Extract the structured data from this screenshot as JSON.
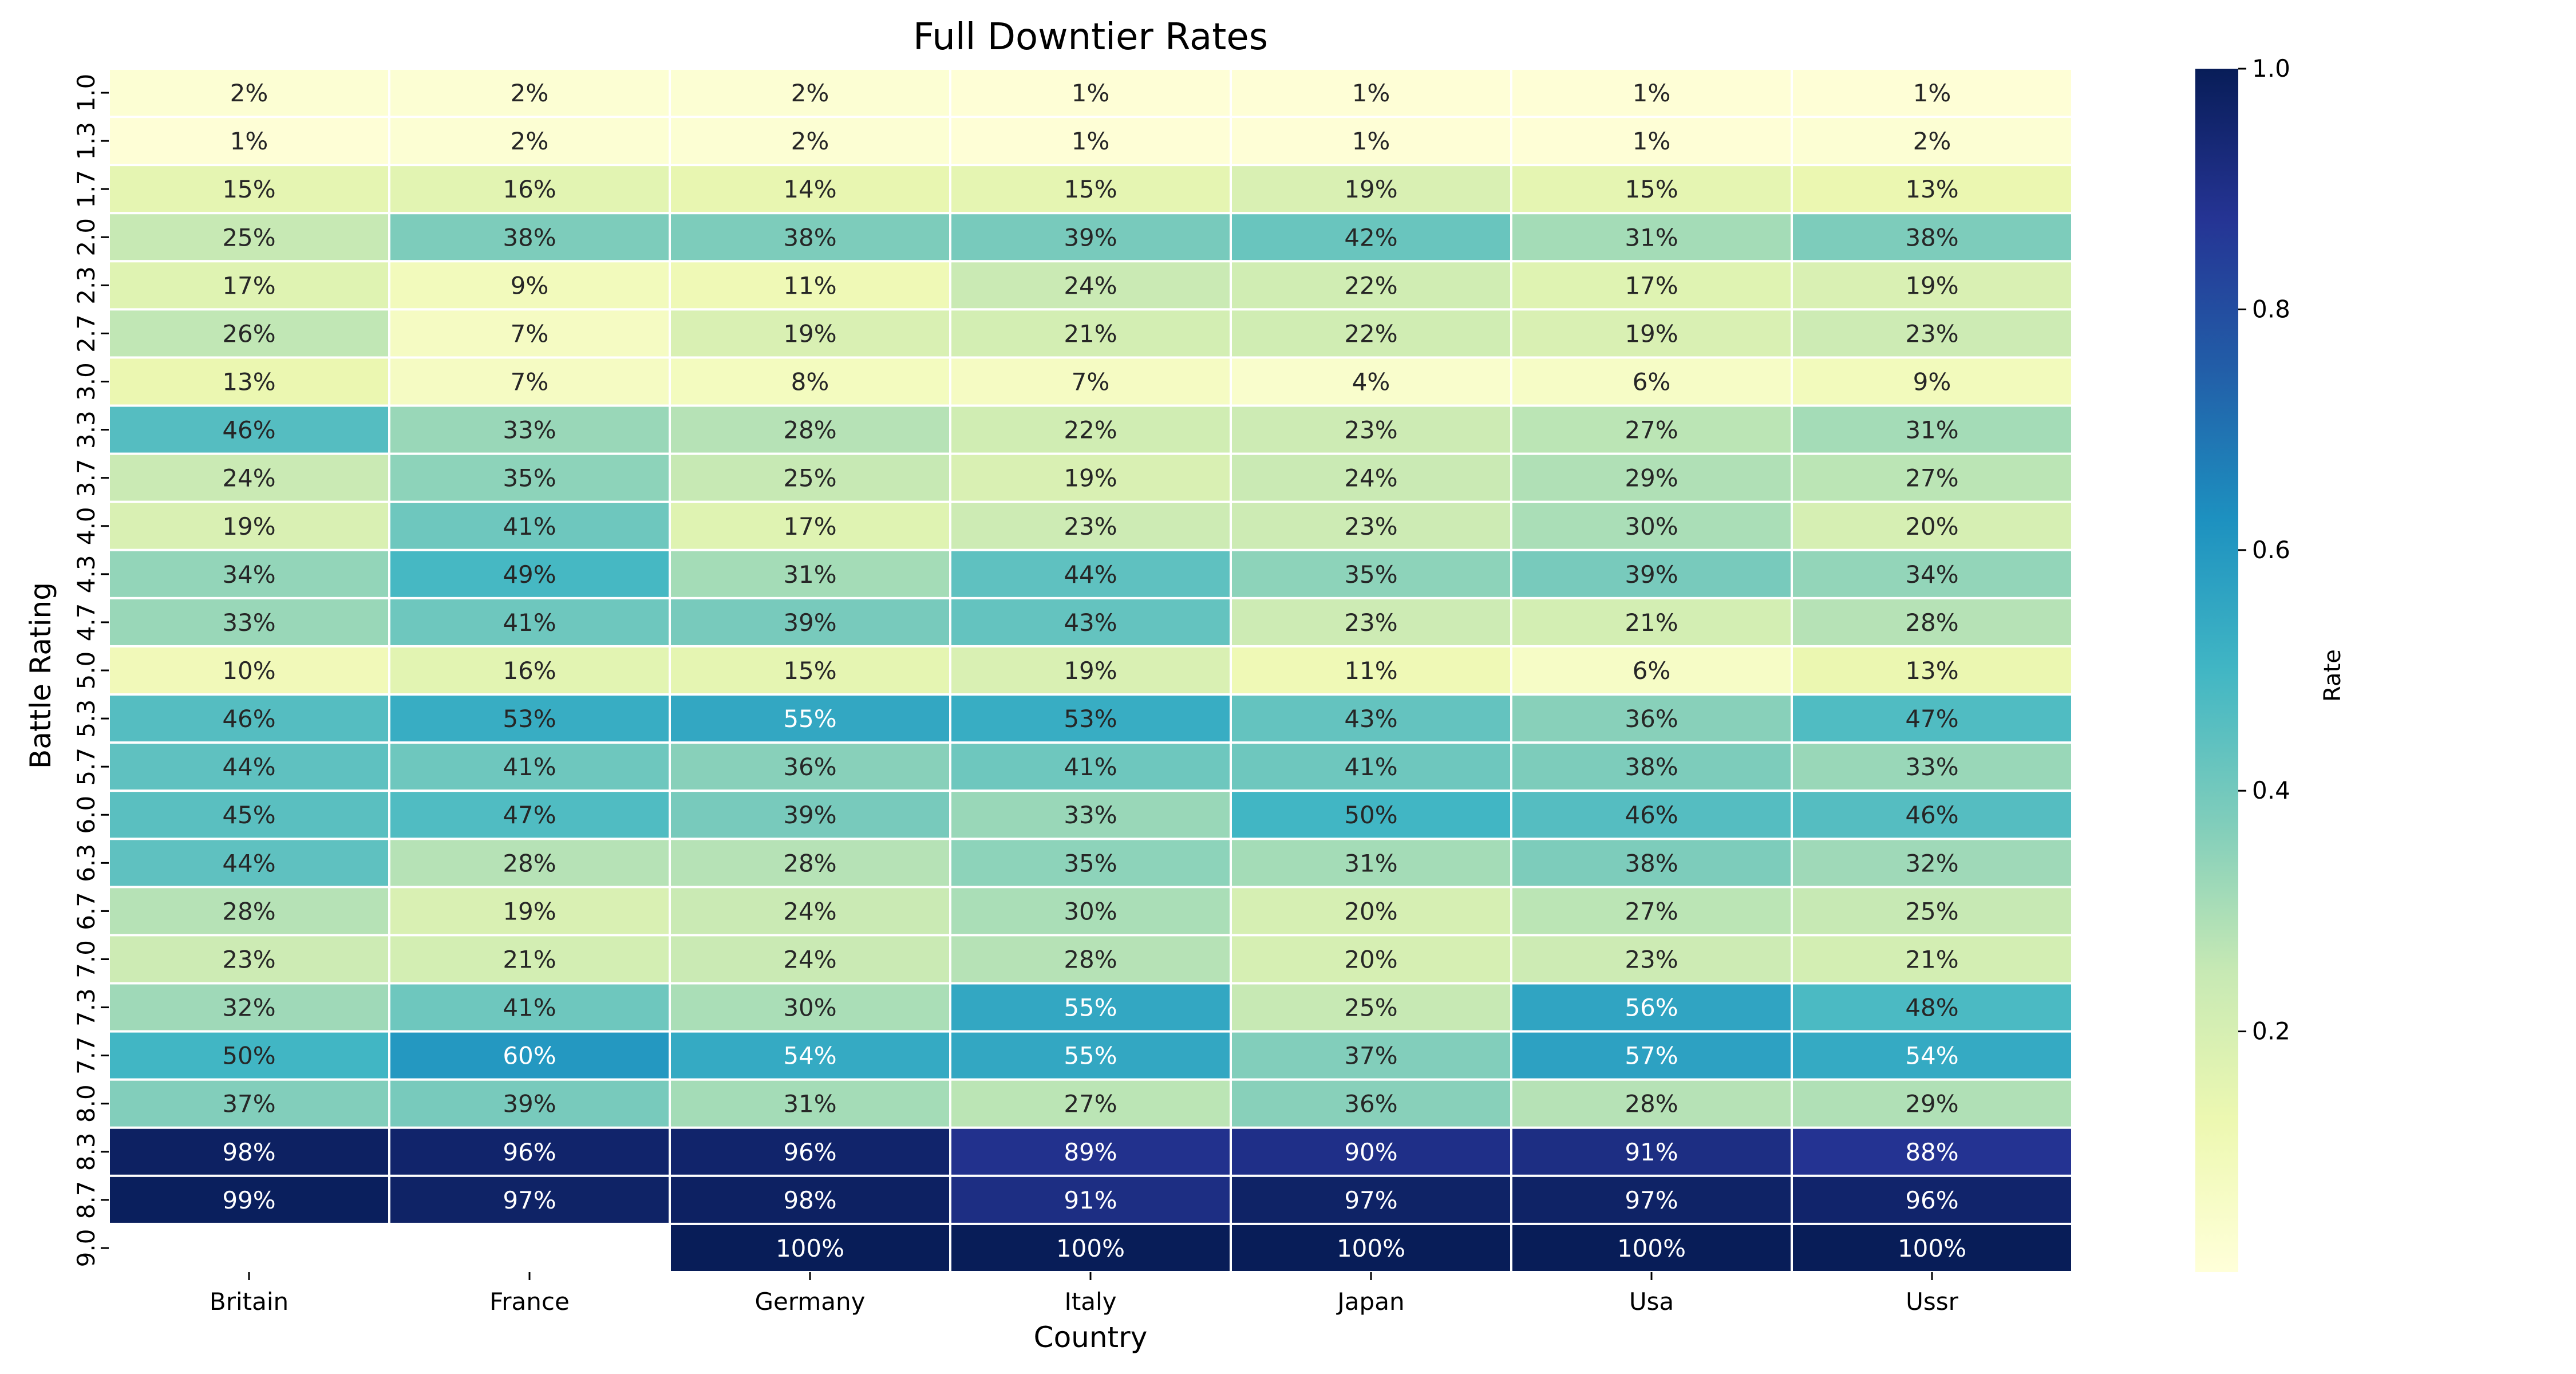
{
  "chart_data": {
    "type": "heatmap",
    "title": "Full Downtier Rates",
    "xlabel": "Country",
    "ylabel": "Battle Rating",
    "x_categories": [
      "Britain",
      "France",
      "Germany",
      "Italy",
      "Japan",
      "Usa",
      "Ussr"
    ],
    "y_categories": [
      "1.0",
      "1.3",
      "1.7",
      "2.0",
      "2.3",
      "2.7",
      "3.0",
      "3.3",
      "3.7",
      "4.0",
      "4.3",
      "4.7",
      "5.0",
      "5.3",
      "5.7",
      "6.0",
      "6.3",
      "6.7",
      "7.0",
      "7.3",
      "7.7",
      "8.0",
      "8.3",
      "8.7",
      "9.0"
    ],
    "values": [
      [
        0.02,
        0.02,
        0.02,
        0.01,
        0.01,
        0.01,
        0.01
      ],
      [
        0.01,
        0.02,
        0.02,
        0.01,
        0.01,
        0.01,
        0.02
      ],
      [
        0.15,
        0.16,
        0.14,
        0.15,
        0.19,
        0.15,
        0.13
      ],
      [
        0.25,
        0.38,
        0.38,
        0.39,
        0.42,
        0.31,
        0.38
      ],
      [
        0.17,
        0.09,
        0.11,
        0.24,
        0.22,
        0.17,
        0.19
      ],
      [
        0.26,
        0.07,
        0.19,
        0.21,
        0.22,
        0.19,
        0.23
      ],
      [
        0.13,
        0.07,
        0.08,
        0.07,
        0.04,
        0.06,
        0.09
      ],
      [
        0.46,
        0.33,
        0.28,
        0.22,
        0.23,
        0.27,
        0.31
      ],
      [
        0.24,
        0.35,
        0.25,
        0.19,
        0.24,
        0.29,
        0.27
      ],
      [
        0.19,
        0.41,
        0.17,
        0.23,
        0.23,
        0.3,
        0.2
      ],
      [
        0.34,
        0.49,
        0.31,
        0.44,
        0.35,
        0.39,
        0.34
      ],
      [
        0.33,
        0.41,
        0.39,
        0.43,
        0.23,
        0.21,
        0.28
      ],
      [
        0.1,
        0.16,
        0.15,
        0.19,
        0.11,
        0.06,
        0.13
      ],
      [
        0.46,
        0.53,
        0.55,
        0.53,
        0.43,
        0.36,
        0.47
      ],
      [
        0.44,
        0.41,
        0.36,
        0.41,
        0.41,
        0.38,
        0.33
      ],
      [
        0.45,
        0.47,
        0.39,
        0.33,
        0.5,
        0.46,
        0.46
      ],
      [
        0.44,
        0.28,
        0.28,
        0.35,
        0.31,
        0.38,
        0.32
      ],
      [
        0.28,
        0.19,
        0.24,
        0.3,
        0.2,
        0.27,
        0.25
      ],
      [
        0.23,
        0.21,
        0.24,
        0.28,
        0.2,
        0.23,
        0.21
      ],
      [
        0.32,
        0.41,
        0.3,
        0.55,
        0.25,
        0.56,
        0.48
      ],
      [
        0.5,
        0.6,
        0.54,
        0.55,
        0.37,
        0.57,
        0.54
      ],
      [
        0.37,
        0.39,
        0.31,
        0.27,
        0.36,
        0.28,
        0.29
      ],
      [
        0.98,
        0.96,
        0.96,
        0.89,
        0.9,
        0.91,
        0.88
      ],
      [
        0.99,
        0.97,
        0.98,
        0.91,
        0.97,
        0.97,
        0.96
      ],
      [
        null,
        null,
        1.0,
        1.0,
        1.0,
        1.0,
        1.0
      ]
    ],
    "value_format": "percent",
    "colormap": "YlGnBu",
    "colorbar": {
      "label": "Rate",
      "range": [
        0.0,
        1.0
      ],
      "ticks": [
        "0.2",
        "0.4",
        "0.6",
        "0.8",
        "1.0"
      ]
    }
  }
}
